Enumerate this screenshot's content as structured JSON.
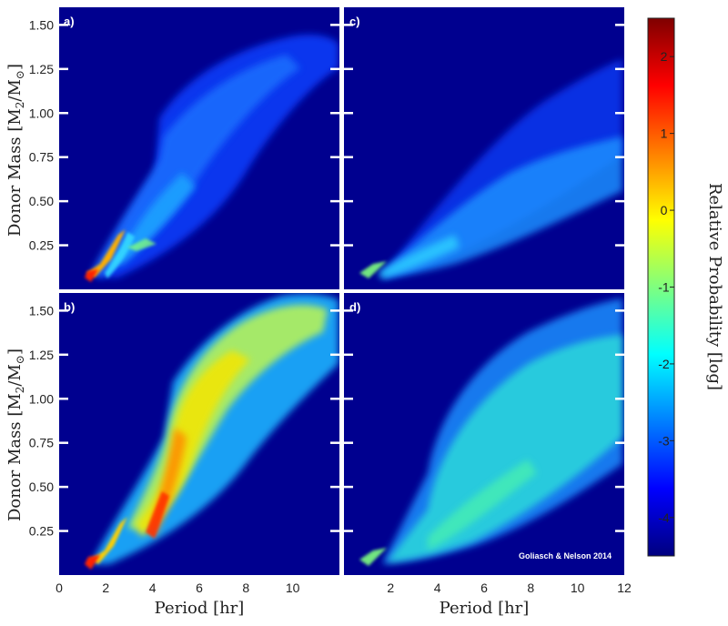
{
  "chart_data": {
    "type": "heatmap",
    "y_label_main": "Donor Mass [M",
    "y_label_sub": "2",
    "y_label_sep": "/M",
    "y_label_sun": "⊙",
    "y_label_end": "]",
    "x_label": "Period [hr]",
    "colorbar_label": "Relative Probability [log]",
    "credit": "Goliasch & Nelson 2014",
    "colorbar": {
      "min": -4.5,
      "max": 2.5,
      "ticks": [
        "2",
        "1",
        "0",
        "-1",
        "-2",
        "-3",
        "-4"
      ],
      "tick_values": [
        2,
        1,
        0,
        -1,
        -2,
        -3,
        -4
      ],
      "colors": [
        "#00007f",
        "#0000ff",
        "#007fff",
        "#00ffff",
        "#7fff7f",
        "#ffff00",
        "#ff7f00",
        "#ff0000",
        "#7f0000"
      ]
    },
    "y_ticks": [
      "0.25",
      "0.50",
      "0.75",
      "1.00",
      "1.25",
      "1.50"
    ],
    "y_tick_values": [
      0.25,
      0.5,
      0.75,
      1.0,
      1.25,
      1.5
    ],
    "ylim": [
      0.0,
      1.6
    ],
    "panels": [
      {
        "id": "a",
        "label": "a)",
        "xlim": [
          0,
          12
        ],
        "x_ticks": [],
        "x_tick_values": []
      },
      {
        "id": "c",
        "label": "c)",
        "xlim": [
          0,
          12
        ],
        "x_ticks": [],
        "x_tick_values": []
      },
      {
        "id": "b",
        "label": "b)",
        "xlim": [
          0,
          12
        ],
        "x_ticks": [
          "0",
          "2",
          "4",
          "6",
          "8",
          "10"
        ],
        "x_tick_values": [
          0,
          2,
          4,
          6,
          8,
          10
        ]
      },
      {
        "id": "d",
        "label": "d)",
        "xlim": [
          0,
          12
        ],
        "x_ticks": [
          "2",
          "4",
          "6",
          "8",
          "10",
          "12"
        ],
        "x_tick_values": [
          2,
          4,
          6,
          8,
          10,
          12
        ]
      }
    ],
    "background_color": "#00008f"
  }
}
